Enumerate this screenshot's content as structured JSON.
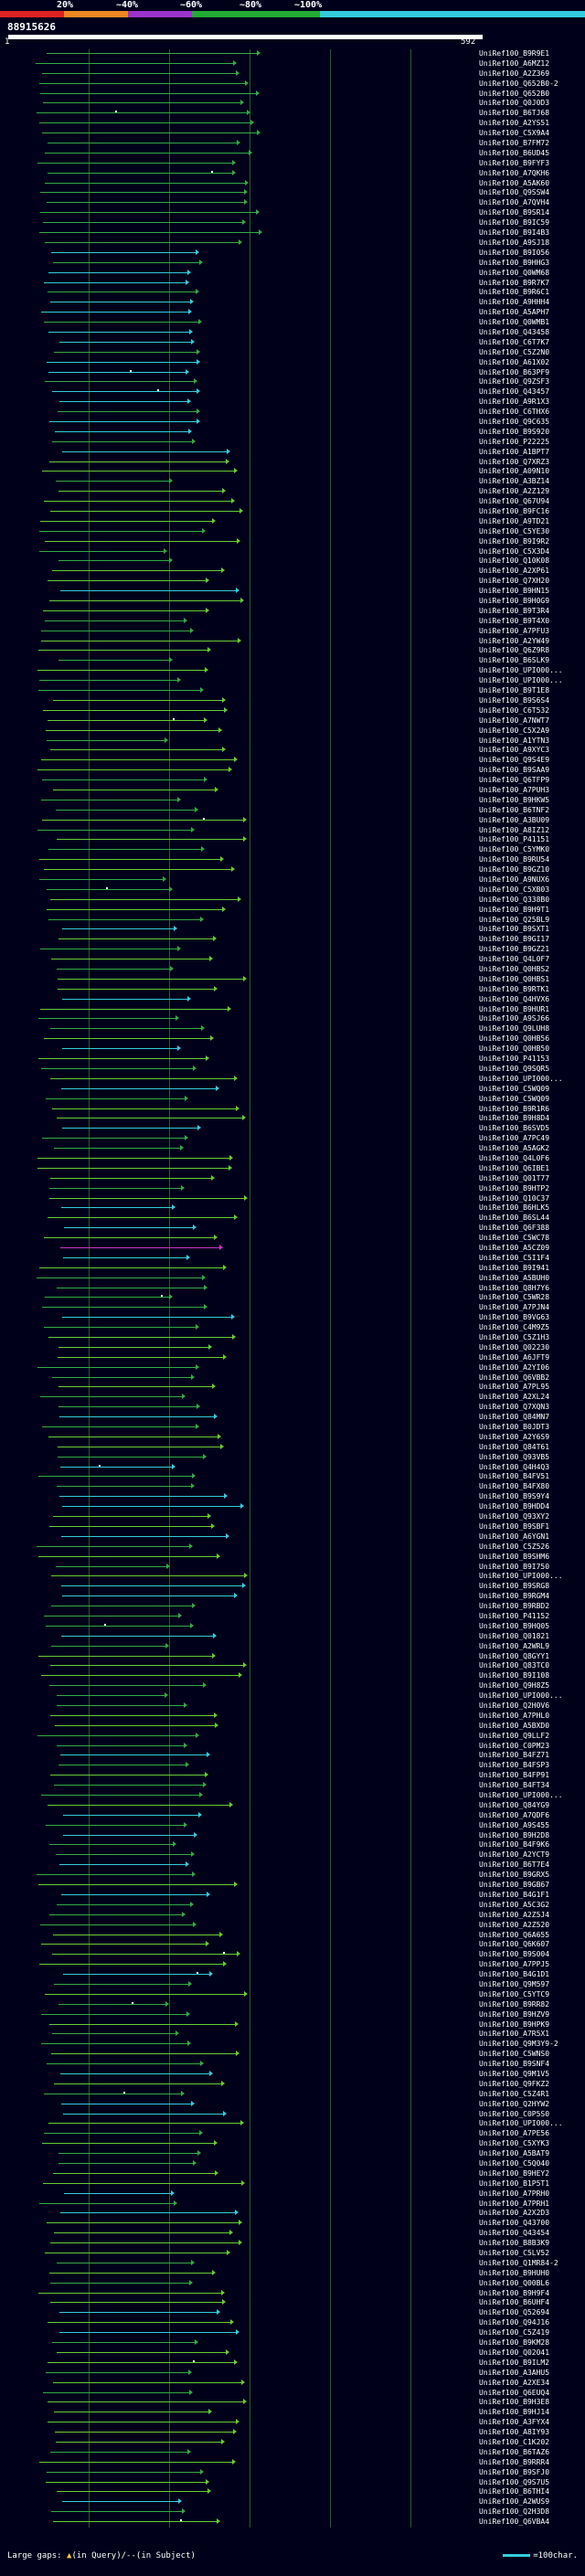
{
  "colors": {
    "background": "#00001a",
    "bar_cyan": "#33ccdd",
    "bar_green": "#33aa44",
    "bar_green_light": "#66cc33",
    "bar_magenta": "#cc33cc",
    "query_bar": "#ffffff",
    "grid": "#2a5a2a"
  },
  "legend": {
    "labels": [
      "20%",
      "~40%",
      "~60%",
      "~80%",
      "~100%"
    ],
    "segment_colors": [
      "#dd2222",
      "#ee8822",
      "#9933cc",
      "#22aa33",
      "#33ccdd"
    ]
  },
  "query": {
    "id": "88915626",
    "start": "1",
    "end": "592"
  },
  "hits": [
    "UniRef100_B9R9E1",
    "UniRef100_A6MZ12",
    "UniRef100_A2Z369",
    "UniRef100_Q652B0-2",
    "UniRef100_Q652B0",
    "UniRef100_Q0J0D3",
    "UniRef100_B6TJ68",
    "UniRef100_A2YS51",
    "UniRef100_C5X9A4",
    "UniRef100_B7FM72",
    "UniRef100_B6UD45",
    "UniRef100_B9FYF3",
    "UniRef100_A7QKH6",
    "UniRef100_A5AK60",
    "UniRef100_Q9SSW4",
    "UniRef100_A7QVH4",
    "UniRef100_B9SR14",
    "UniRef100_B9IC59",
    "UniRef100_B9I4B3",
    "UniRef100_A9SJ18",
    "UniRef100_B9I056",
    "UniRef100_B9HHG3",
    "UniRef100_Q0WM68",
    "UniRef100_B9R7K7",
    "UniRef100_B9R6C1",
    "UniRef100_A9HHH4",
    "UniRef100_A5APH7",
    "UniRef100_Q0WMB1",
    "UniRef100_Q43458",
    "UniRef100_C6T7K7",
    "UniRef100_C5Z2N0",
    "UniRef100_A61X02",
    "UniRef100_B63PF9",
    "UniRef100_Q9ZSF3",
    "UniRef100_Q43457",
    "UniRef100_A9R1X3",
    "UniRef100_C6THX6",
    "UniRef100_Q9C635",
    "UniRef100_B9S920",
    "UniRef100_P22225",
    "UniRef100_A1BPT7",
    "UniRef100_Q7XRZ3",
    "UniRef100_A09N10",
    "UniRef100_A3BZ14",
    "UniRef100_A2Z129",
    "UniRef100_Q67U94",
    "UniRef100_B9FC16",
    "UniRef100_A9TD21",
    "UniRef100_C5YE30",
    "UniRef100_B9I9R2",
    "UniRef100_C5X3D4",
    "UniRef100_Q10K08",
    "UniRef100_A2XP61",
    "UniRef100_Q7XH20",
    "UniRef100_B9HN15",
    "UniRef100_B9H0G9",
    "UniRef100_B9T3R4",
    "UniRef100_B9T4X0",
    "UniRef100_A7PFU3",
    "UniRef100_A2YW49",
    "UniRef100_Q6Z9R8",
    "UniRef100_B6SLK9",
    "UniRef100_UPI000...",
    "UniRef100_UPI000...",
    "UniRef100_B9T1E8",
    "UniRef100_B9S6S4",
    "UniRef100_C6T532",
    "UniRef100_A7NWT7",
    "UniRef100_C5X2A9",
    "UniRef100_A1YTN3",
    "UniRef100_A9XYC3",
    "UniRef100_Q9S4E9",
    "UniRef100_B9SAA9",
    "UniRef100_Q6TFP9",
    "UniRef100_A7PUH3",
    "UniRef100_B9HKW5",
    "UniRef100_B6TNF2",
    "UniRef100_A3BU09",
    "UniRef100_A8IZ12",
    "UniRef100_P41151",
    "UniRef100_C5YMK0",
    "UniRef100_B9RU54",
    "UniRef100_B9GZ10",
    "UniRef100_A9NUX6",
    "UniRef100_C5XB03",
    "UniRef100_Q338B0",
    "UniRef100_B9H9T1",
    "UniRef100_Q25BL9",
    "UniRef100_B9SXT1",
    "UniRef100_B9GI17",
    "UniRef100_B9GZ21",
    "UniRef100_Q4L0F7",
    "UniRef100_Q0HBS2",
    "UniRef100_Q0HBS1",
    "UniRef100_B9RTK1",
    "UniRef100_Q4HVX6",
    "UniRef100_B9HUR1",
    "UniRef100_A9SJ66",
    "UniRef100_Q9LUH8",
    "UniRef100_Q0HB56",
    "UniRef100_Q0HB50",
    "UniRef100_P41153",
    "UniRef100_Q9SQR5",
    "UniRef100_UPI000...",
    "UniRef100_C5WQ09",
    "UniRef100_C5WQ09",
    "UniRef100_B9R1R6",
    "UniRef100_B9H8D4",
    "UniRef100_B6SVD5",
    "UniRef100_A7PC49",
    "UniRef100_A5AGK2",
    "UniRef100_Q4L0F6",
    "UniRef100_Q6IBE1",
    "UniRef100_Q01T77",
    "UniRef100_B9HTP2",
    "UniRef100_Q10C37",
    "UniRef100_B6HLK5",
    "UniRef100_B6SL44",
    "UniRef100_Q6F388",
    "UniRef100_C5WC78",
    "UniRef100_A5CZ09",
    "UniRef100_C5I1F4",
    "UniRef100_B9I941",
    "UniRef100_A5BUH0",
    "UniRef100_Q8H7Y6",
    "UniRef100_C5WR28",
    "UniRef100_A7PJN4",
    "UniRef100_B9VG63",
    "UniRef100_C4M9Z5",
    "UniRef100_C5Z1H3",
    "UniRef100_Q02230",
    "UniRef100_A6JFT9",
    "UniRef100_A2YI06",
    "UniRef100_Q6VBB2",
    "UniRef100_A7PL95",
    "UniRef100_A2XL24",
    "UniRef100_Q7XQN3",
    "UniRef100_Q84MN7",
    "UniRef100_B0JDT3",
    "UniRef100_A2Y6S9",
    "UniRef100_Q84T61",
    "UniRef100_Q93VB5",
    "UniRef100_Q4H4Q3",
    "UniRef100_B4FV51",
    "UniRef100_B4FX80",
    "UniRef100_B9S9Y4",
    "UniRef100_B9HDD4",
    "UniRef100_Q93XY2",
    "UniRef100_B9SBF1",
    "UniRef100_A6YGN1",
    "UniRef100_C5Z526",
    "UniRef100_B9SHM6",
    "UniRef100_B9I750",
    "UniRef100_UPI000...",
    "UniRef100_B9SRG8",
    "UniRef100_B9RGM4",
    "UniRef100_B9RBD2",
    "UniRef100_P41152",
    "UniRef100_B9HQ05",
    "UniRef100_Q01821",
    "UniRef100_A2WRL9",
    "UniRef100_Q8GYY1",
    "UniRef100_Q83TC0",
    "UniRef100_B9I108",
    "UniRef100_Q9H8Z5",
    "UniRef100_UPI000...",
    "UniRef100_Q2H0V6",
    "UniRef100_A7PHL0",
    "UniRef100_A5BXD0",
    "UniRef100_Q9LLF2",
    "UniRef100_C0PM23",
    "UniRef100_B4FZ71",
    "UniRef100_B4FSP3",
    "UniRef100_B4FP91",
    "UniRef100_B4FT34",
    "UniRef100_UPI000...",
    "UniRef100_Q84YG9",
    "UniRef100_A7QDF6",
    "UniRef100_A9S455",
    "UniRef100_B9H2D8",
    "UniRef100_B4F9K6",
    "UniRef100_A2YCT9",
    "UniRef100_B6T7E4",
    "UniRef100_B9GRX5",
    "UniRef100_B9GB67",
    "UniRef100_B4G1F1",
    "UniRef100_A5C3G2",
    "UniRef100_A2Z5J4",
    "UniRef100_A2Z520",
    "UniRef100_Q6A655",
    "UniRef100_Q6K607",
    "UniRef100_B9S004",
    "UniRef100_A7PPJ5",
    "UniRef100_B4G1D1",
    "UniRef100_Q9M597",
    "UniRef100_C5YTC9",
    "UniRef100_B9RR82",
    "UniRef100_B9HZV9",
    "UniRef100_B9HPK9",
    "UniRef100_A7R5X1",
    "UniRef100_Q9M3Y9-2",
    "UniRef100_C5WNS0",
    "UniRef100_B9SNF4",
    "UniRef100_Q9M1V5",
    "UniRef100_Q9FKZ2",
    "UniRef100_C5Z4R1",
    "UniRef100_Q2HYW2",
    "UniRef100_C0P5S0",
    "UniRef100_UPI000...",
    "UniRef100_A7PE56",
    "UniRef100_C5XYK3",
    "UniRef100_A5BAT9",
    "UniRef100_C5Q040",
    "UniRef100_B9HEY2",
    "UniRef100_B1P5T1",
    "UniRef100_A7PRH0",
    "UniRef100_A7PRH1",
    "UniRef100_A2X2D3",
    "UniRef100_Q43700",
    "UniRef100_Q43454",
    "UniRef100_B8B3K9",
    "UniRef100_C5LV52",
    "UniRef100_Q1MR84-2",
    "UniRef100_B9HUH0",
    "UniRef100_Q00BL6",
    "UniRef100_B9H9F4",
    "UniRef100_B6UHF4",
    "UniRef100_Q52694",
    "UniRef100_Q94J16",
    "UniRef100_C5Z419",
    "UniRef100_B9KM28",
    "UniRef100_Q02041",
    "UniRef100_B9ILM2",
    "UniRef100_A3AHU5",
    "UniRef100_A2XE34",
    "UniRef100_Q6EUQ4",
    "UniRef100_B9H3E8",
    "UniRef100_B9HJ14",
    "UniRef100_A3FYX4",
    "UniRef100_A8IY93",
    "UniRef100_C1K202",
    "UniRef100_B6TAZ6",
    "UniRef100_B9RRR4",
    "UniRef100_B9SFJ0",
    "UniRef100_Q9S7U5",
    "UniRef100_B6THI4",
    "UniRef100_A2WUS9",
    "UniRef100_Q2H3D8",
    "UniRef100_Q6VBA4"
  ],
  "footer": {
    "gaps_prefix": "Large gaps:",
    "gaps_in_query": "(in Query)",
    "gaps_separator": "/--",
    "gaps_in_subject": "(in Subject)",
    "scale_text": "=100char."
  }
}
